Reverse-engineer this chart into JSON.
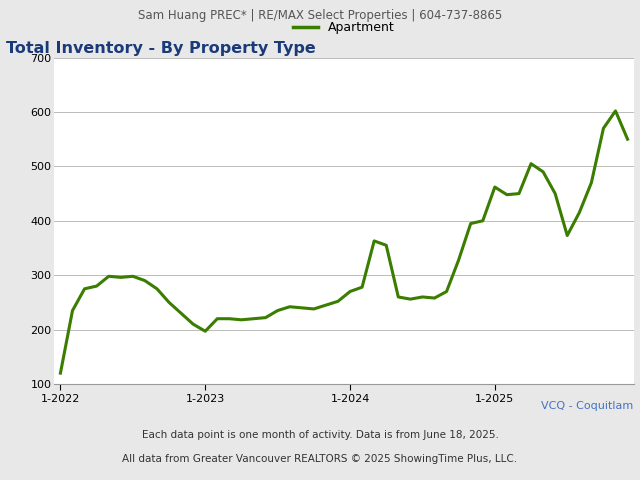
{
  "title": "Total Inventory - By Property Type",
  "header": "Sam Huang PREC* | RE/MAX Select Properties | 604-737-8865",
  "footer1": "Each data point is one month of activity. Data is from June 18, 2025.",
  "footer2": "All data from Greater Vancouver REALTORS © 2025 ShowingTime Plus, LLC.",
  "region_label": "VCQ - Coquitlam",
  "legend_label": "Apartment",
  "line_color": "#3a7d00",
  "line_width": 2.2,
  "ylim": [
    100,
    700
  ],
  "yticks": [
    100,
    200,
    300,
    400,
    500,
    600,
    700
  ],
  "title_color": "#1a3a7a",
  "header_color": "#555555",
  "region_color": "#4472c4",
  "values": [
    120,
    235,
    275,
    280,
    298,
    296,
    298,
    290,
    275,
    250,
    230,
    210,
    197,
    220,
    220,
    218,
    220,
    222,
    235,
    242,
    240,
    238,
    245,
    252,
    270,
    278,
    363,
    355,
    260,
    256,
    260,
    258,
    270,
    328,
    395,
    400,
    462,
    448,
    450,
    505,
    490,
    450,
    373,
    415,
    470,
    570,
    602,
    550
  ],
  "outer_background": "#e8e8e8",
  "header_background": "#d8d8d8",
  "plot_background": "#ffffff",
  "grid_color": "#bbbbbb"
}
